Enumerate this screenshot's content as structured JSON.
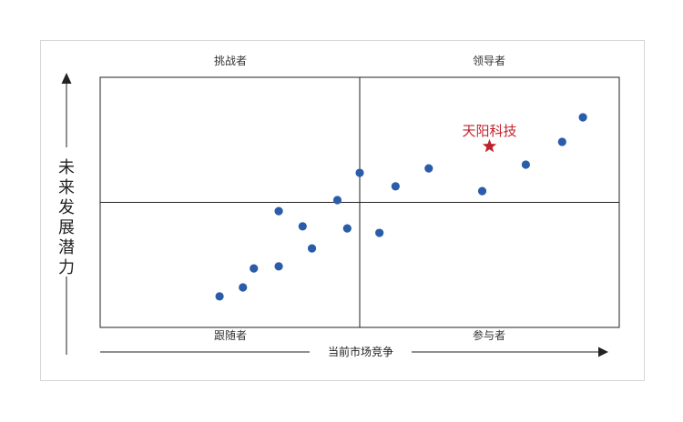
{
  "chart_data": {
    "type": "scatter",
    "quadrants": {
      "top_left": "挑战者",
      "top_right": "领导者",
      "bottom_left": "跟随者",
      "bottom_right": "参与者"
    },
    "xlabel": "当前市场竞争",
    "ylabel": "未来发展潜力",
    "xlim": [
      0,
      100
    ],
    "ylim": [
      0,
      100
    ],
    "divider": {
      "x": 50,
      "y": 50
    },
    "series": [
      {
        "values": [
          {
            "x": 23.0,
            "y": 12.4
          },
          {
            "x": 27.5,
            "y": 16.0
          },
          {
            "x": 29.6,
            "y": 23.6
          },
          {
            "x": 34.4,
            "y": 24.4
          },
          {
            "x": 34.4,
            "y": 46.5
          },
          {
            "x": 39.0,
            "y": 40.4
          },
          {
            "x": 40.8,
            "y": 31.6
          },
          {
            "x": 45.7,
            "y": 50.9
          },
          {
            "x": 47.6,
            "y": 39.6
          },
          {
            "x": 50.0,
            "y": 61.8
          },
          {
            "x": 53.8,
            "y": 37.8
          },
          {
            "x": 56.9,
            "y": 56.4
          },
          {
            "x": 63.3,
            "y": 63.6
          },
          {
            "x": 73.6,
            "y": 54.5
          },
          {
            "x": 82.0,
            "y": 65.1
          },
          {
            "x": 89.0,
            "y": 74.2
          },
          {
            "x": 93.0,
            "y": 84.0
          }
        ]
      }
    ],
    "highlight": {
      "label": "天阳科技",
      "x": 75.0,
      "y": 72.4,
      "marker": "star"
    },
    "colors": {
      "point": "#2a5caa",
      "highlight": "#c0222b",
      "axis": "#222222",
      "frame": "#d6d6d6"
    }
  }
}
